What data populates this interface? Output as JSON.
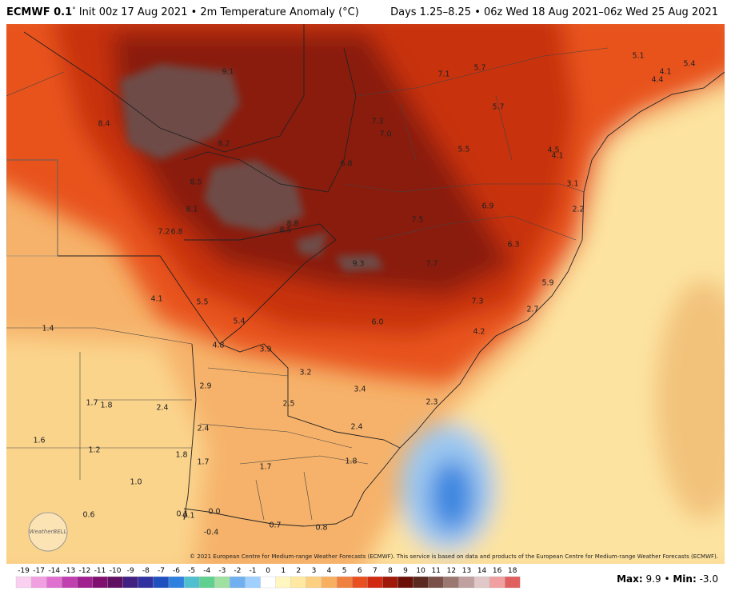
{
  "header": {
    "model": "ECMWF 0.1",
    "degree": "°",
    "title": " Init 00z 17 Aug 2021 • 2m Temperature Anomaly (°C)",
    "valid": "Days 1.25–8.25 • 06z Wed 18 Aug 2021–06z Wed 25 Aug 2021"
  },
  "map": {
    "labels": [
      "9.1",
      "8.4",
      "8.2",
      "8.5",
      "8.1",
      "7.2",
      "6.8",
      "8.8",
      "8.5",
      "9.3",
      "7.1",
      "5.7",
      "5.1",
      "5.4",
      "4.1",
      "4.4",
      "7.3",
      "7.0",
      "5.7",
      "5.5",
      "4.5",
      "4.1",
      "6.8",
      "3.1",
      "2.2",
      "6.9",
      "7.5",
      "6.3",
      "7.7",
      "5.9",
      "4.1",
      "5.5",
      "7.3",
      "2.7",
      "1.4",
      "5.4",
      "6.0",
      "4.2",
      "4.8",
      "3.9",
      "3.2",
      "2.9",
      "3.4",
      "1.7",
      "1.8",
      "2.4",
      "2.5",
      "2.3",
      "2.4",
      "2.4",
      "1.6",
      "1.2",
      "1.8",
      "1.7",
      "1.7",
      "1.8",
      "1.0",
      "0.6",
      "0.0",
      "0.1",
      "0.1",
      "-0.4",
      "0.7",
      "0.8"
    ],
    "logo": "WeatherBELL",
    "copyright": "© 2021 European Centre for Medium-range Weather Forecasts (ECMWF). This service is based on data and products of the European Centre for Medium-range Weather Forecasts (ECMWF)."
  },
  "colorbar": {
    "ticks": [
      "-19",
      "-17",
      "-14",
      "-13",
      "-12",
      "-11",
      "-10",
      "-9",
      "-8",
      "-7",
      "-6",
      "-5",
      "-4",
      "-3",
      "-2",
      "-1",
      "0",
      "1",
      "2",
      "3",
      "4",
      "5",
      "6",
      "7",
      "8",
      "9",
      "10",
      "11",
      "12",
      "13",
      "14",
      "16",
      "18"
    ],
    "colors": [
      "#f9d0f0",
      "#f0a0e0",
      "#e070d0",
      "#c040b0",
      "#a02090",
      "#801070",
      "#601060",
      "#402080",
      "#3030a0",
      "#2050c0",
      "#3080e0",
      "#50c0d0",
      "#60d090",
      "#a0e0a0",
      "#70b0f0",
      "#a0d0ff",
      "#ffffff",
      "#fff6c0",
      "#ffe8a0",
      "#fcd080",
      "#f8b060",
      "#f08040",
      "#e85020",
      "#d02a10",
      "#a01808",
      "#6a1008",
      "#5a2a20",
      "#7a5048",
      "#9a7870",
      "#c0a0a0",
      "#e0c8c8",
      "#f0a0a0",
      "#e06060"
    ]
  },
  "footer": {
    "max_label": "Max:",
    "max": "9.9",
    "sep": "•",
    "min_label": "Min:",
    "min": "-3.0"
  }
}
